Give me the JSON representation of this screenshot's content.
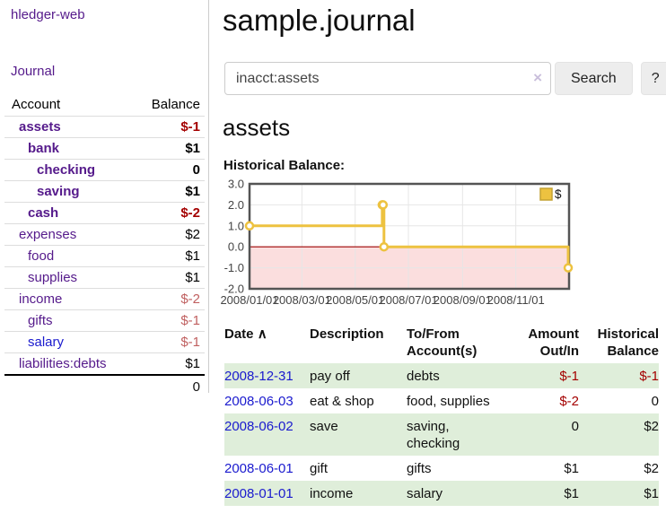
{
  "brand": "hledger-web",
  "nav": {
    "journal": "Journal"
  },
  "sidebar": {
    "header": {
      "account": "Account",
      "balance": "Balance"
    },
    "accounts": [
      {
        "name": "assets",
        "depth": 0,
        "balance": "$-1",
        "bold": true,
        "neg": "strong"
      },
      {
        "name": "bank",
        "depth": 1,
        "balance": "$1",
        "bold": true,
        "neg": "none"
      },
      {
        "name": "checking",
        "depth": 2,
        "balance": "0",
        "bold": true,
        "neg": "none"
      },
      {
        "name": "saving",
        "depth": 2,
        "balance": "$1",
        "bold": true,
        "neg": "none"
      },
      {
        "name": "cash",
        "depth": 1,
        "balance": "$-2",
        "bold": true,
        "neg": "strong"
      },
      {
        "name": "expenses",
        "depth": 0,
        "balance": "$2",
        "bold": false,
        "neg": "none"
      },
      {
        "name": "food",
        "depth": 1,
        "balance": "$1",
        "bold": false,
        "neg": "none"
      },
      {
        "name": "supplies",
        "depth": 1,
        "balance": "$1",
        "bold": false,
        "neg": "none"
      },
      {
        "name": "income",
        "depth": 0,
        "balance": "$-2",
        "bold": false,
        "neg": "soft"
      },
      {
        "name": "gifts",
        "depth": 1,
        "balance": "$-1",
        "bold": false,
        "neg": "soft"
      },
      {
        "name": "salary",
        "depth": 1,
        "balance": "$-1",
        "bold": false,
        "neg": "soft",
        "blue": true
      },
      {
        "name": "liabilities:debts",
        "depth": 0,
        "balance": "$1",
        "bold": false,
        "neg": "none"
      }
    ],
    "total": "0"
  },
  "header": {
    "title": "sample.journal"
  },
  "search": {
    "value": "inacct:assets",
    "clear_icon": "×",
    "button": "Search",
    "help": "?"
  },
  "account_page": {
    "title": "assets",
    "chart_label": "Historical Balance:"
  },
  "chart_data": {
    "type": "line",
    "style": "steps",
    "title": "Historical Balance",
    "series": [
      {
        "name": "$",
        "color": "#edc240",
        "points": [
          [
            "2008-01-01",
            1
          ],
          [
            "2008-06-01",
            2
          ],
          [
            "2008-06-02",
            2
          ],
          [
            "2008-06-03",
            0
          ],
          [
            "2008-12-31",
            -1
          ]
        ]
      }
    ],
    "x_range": [
      "2008-01-01",
      "2009-01-01"
    ],
    "x_ticks": [
      {
        "date": "2008-01-01",
        "label": "2008/01/01"
      },
      {
        "date": "2008-03-01",
        "label": "2008/03/01"
      },
      {
        "date": "2008-05-01",
        "label": "2008/05/01"
      },
      {
        "date": "2008-07-01",
        "label": "2008/07/01"
      },
      {
        "date": "2008-09-01",
        "label": "2008/09/01"
      },
      {
        "date": "2008-11-01",
        "label": "2008/11/01"
      }
    ],
    "y_ticks": [
      "3.0",
      "2.0",
      "1.0",
      "0.0",
      "-1.0",
      "-2.0"
    ],
    "y_range": [
      -2,
      3
    ],
    "grid": true,
    "negative_fill": "#fbdede",
    "zero_line_color": "#9c0000",
    "legend": {
      "label": "$",
      "position": "top-right"
    }
  },
  "register": {
    "sort_indicator": "∧",
    "columns": [
      {
        "label": "Date"
      },
      {
        "label": "Description"
      },
      {
        "label": "To/From Account(s)"
      },
      {
        "label": "Amount Out/In"
      },
      {
        "label": "Historical Balance"
      }
    ],
    "rows": [
      {
        "date": "2008-12-31",
        "description": "pay off",
        "accounts": [
          "debts"
        ],
        "amount": "$-1",
        "amount_neg": true,
        "balance": "$-1",
        "balance_neg": true,
        "striped": true
      },
      {
        "date": "2008-06-03",
        "description": "eat & shop",
        "accounts": [
          "food",
          "supplies"
        ],
        "amount": "$-2",
        "amount_neg": true,
        "balance": "0",
        "balance_neg": false,
        "striped": false
      },
      {
        "date": "2008-06-02",
        "description": "save",
        "accounts": [
          "saving",
          "checking"
        ],
        "amount": "0",
        "amount_neg": false,
        "balance": "$2",
        "balance_neg": false,
        "striped": true
      },
      {
        "date": "2008-06-01",
        "description": "gift",
        "accounts": [
          "gifts"
        ],
        "amount": "$1",
        "amount_neg": false,
        "balance": "$2",
        "balance_neg": false,
        "striped": false
      },
      {
        "date": "2008-01-01",
        "description": "income",
        "accounts": [
          "salary"
        ],
        "amount": "$1",
        "amount_neg": false,
        "balance": "$1",
        "balance_neg": false,
        "striped": true
      }
    ]
  }
}
